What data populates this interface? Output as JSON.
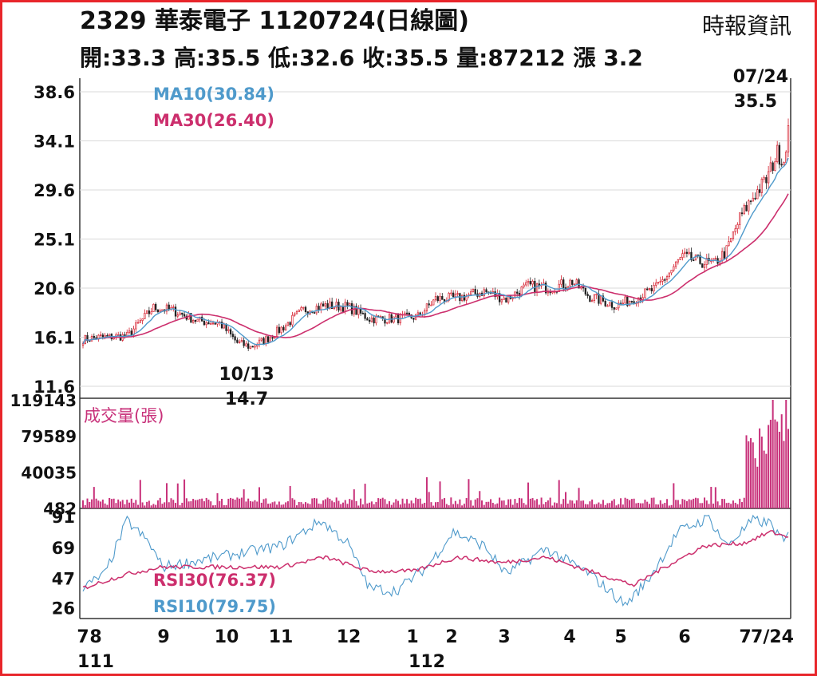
{
  "header": {
    "title": "2329  華泰電子 1120724(日線圖)",
    "source": "時報資訊",
    "ohlc_line": "開:33.3 高:35.5 低:32.6 收:35.5 量:87212 漲 3.2"
  },
  "colors": {
    "frame": "#e8262b",
    "ma10": "#4f9acb",
    "ma30": "#cc2f6d",
    "up_candle": "#d6202f",
    "down_candle": "#222222",
    "volume": "#c8317a",
    "grid": "#d9d9d9"
  },
  "chart_data": [
    {
      "type": "candlestick",
      "title": "",
      "y_ticks": [
        38.6,
        34.1,
        29.6,
        25.1,
        20.6,
        16.1,
        11.6
      ],
      "ylim": [
        11.6,
        38.6
      ],
      "legend": [
        {
          "name": "MA10(30.84)",
          "color": "#4f9acb"
        },
        {
          "name": "MA30(26.40)",
          "color": "#cc2f6d"
        }
      ],
      "annotations": [
        {
          "date": "10/13",
          "value": "14.7"
        },
        {
          "date": "07/24",
          "value": "35.5"
        }
      ],
      "anchors": [
        {
          "x": 0,
          "price": 15.9
        },
        {
          "x": 8,
          "price": 16.1
        },
        {
          "x": 20,
          "price": 16.2
        },
        {
          "x": 32,
          "price": 18.8
        },
        {
          "x": 40,
          "price": 18.6
        },
        {
          "x": 52,
          "price": 17.6
        },
        {
          "x": 62,
          "price": 17.4
        },
        {
          "x": 70,
          "price": 15.6
        },
        {
          "x": 76,
          "price": 15.2
        },
        {
          "x": 84,
          "price": 16.0
        },
        {
          "x": 92,
          "price": 17.2
        },
        {
          "x": 100,
          "price": 18.6
        },
        {
          "x": 110,
          "price": 19.0
        },
        {
          "x": 120,
          "price": 18.9
        },
        {
          "x": 130,
          "price": 17.8
        },
        {
          "x": 142,
          "price": 17.8
        },
        {
          "x": 152,
          "price": 18.0
        },
        {
          "x": 160,
          "price": 19.6
        },
        {
          "x": 170,
          "price": 19.7
        },
        {
          "x": 182,
          "price": 20.3
        },
        {
          "x": 192,
          "price": 19.6
        },
        {
          "x": 202,
          "price": 20.8
        },
        {
          "x": 212,
          "price": 20.6
        },
        {
          "x": 222,
          "price": 21.2
        },
        {
          "x": 230,
          "price": 19.8
        },
        {
          "x": 242,
          "price": 19.0
        },
        {
          "x": 252,
          "price": 19.8
        },
        {
          "x": 260,
          "price": 20.6
        },
        {
          "x": 266,
          "price": 22.0
        },
        {
          "x": 272,
          "price": 23.5
        },
        {
          "x": 280,
          "price": 23.0
        },
        {
          "x": 286,
          "price": 22.8
        },
        {
          "x": 292,
          "price": 24.0
        },
        {
          "x": 298,
          "price": 27.0
        },
        {
          "x": 304,
          "price": 29.0
        },
        {
          "x": 310,
          "price": 30.5
        },
        {
          "x": 315,
          "price": 33.0
        },
        {
          "x": 318,
          "price": 32.3
        },
        {
          "x": 320,
          "price": 35.5
        }
      ],
      "volume_ticks": [
        119143,
        79589,
        40035,
        482
      ],
      "volume_label": "成交量(張)",
      "volume_last": 87212
    },
    {
      "type": "line",
      "title": "",
      "y_ticks": [
        91,
        69,
        47,
        26
      ],
      "legend": [
        {
          "name": "RSI30(76.37)",
          "color": "#cc2f6d"
        },
        {
          "name": "RSI10(79.75)",
          "color": "#4f9acb"
        }
      ],
      "x_month_labels": [
        "7",
        "8",
        "9",
        "10",
        "11",
        "12",
        "1",
        "2",
        "3",
        "4",
        "5",
        "6",
        "7",
        "7/24"
      ],
      "x_year_labels": [
        "111",
        "112"
      ],
      "rsi10_anchors": [
        {
          "x": 0,
          "v": 40
        },
        {
          "x": 10,
          "v": 50
        },
        {
          "x": 20,
          "v": 88
        },
        {
          "x": 30,
          "v": 72
        },
        {
          "x": 36,
          "v": 55
        },
        {
          "x": 90,
          "v": 70
        },
        {
          "x": 108,
          "v": 88
        },
        {
          "x": 120,
          "v": 72
        },
        {
          "x": 130,
          "v": 40
        },
        {
          "x": 142,
          "v": 38
        },
        {
          "x": 156,
          "v": 55
        },
        {
          "x": 168,
          "v": 80
        },
        {
          "x": 182,
          "v": 70
        },
        {
          "x": 192,
          "v": 50
        },
        {
          "x": 210,
          "v": 68
        },
        {
          "x": 230,
          "v": 50
        },
        {
          "x": 246,
          "v": 28
        },
        {
          "x": 256,
          "v": 45
        },
        {
          "x": 270,
          "v": 80
        },
        {
          "x": 284,
          "v": 90
        },
        {
          "x": 292,
          "v": 70
        },
        {
          "x": 304,
          "v": 88
        },
        {
          "x": 312,
          "v": 86
        },
        {
          "x": 318,
          "v": 72
        },
        {
          "x": 320,
          "v": 79.75
        }
      ],
      "rsi30_anchors": [
        {
          "x": 0,
          "v": 40
        },
        {
          "x": 20,
          "v": 50
        },
        {
          "x": 36,
          "v": 55
        },
        {
          "x": 90,
          "v": 55
        },
        {
          "x": 110,
          "v": 62
        },
        {
          "x": 130,
          "v": 52
        },
        {
          "x": 150,
          "v": 52
        },
        {
          "x": 170,
          "v": 62
        },
        {
          "x": 190,
          "v": 58
        },
        {
          "x": 210,
          "v": 62
        },
        {
          "x": 230,
          "v": 52
        },
        {
          "x": 250,
          "v": 42
        },
        {
          "x": 264,
          "v": 55
        },
        {
          "x": 282,
          "v": 70
        },
        {
          "x": 300,
          "v": 72
        },
        {
          "x": 312,
          "v": 80
        },
        {
          "x": 320,
          "v": 76.37
        }
      ]
    }
  ]
}
